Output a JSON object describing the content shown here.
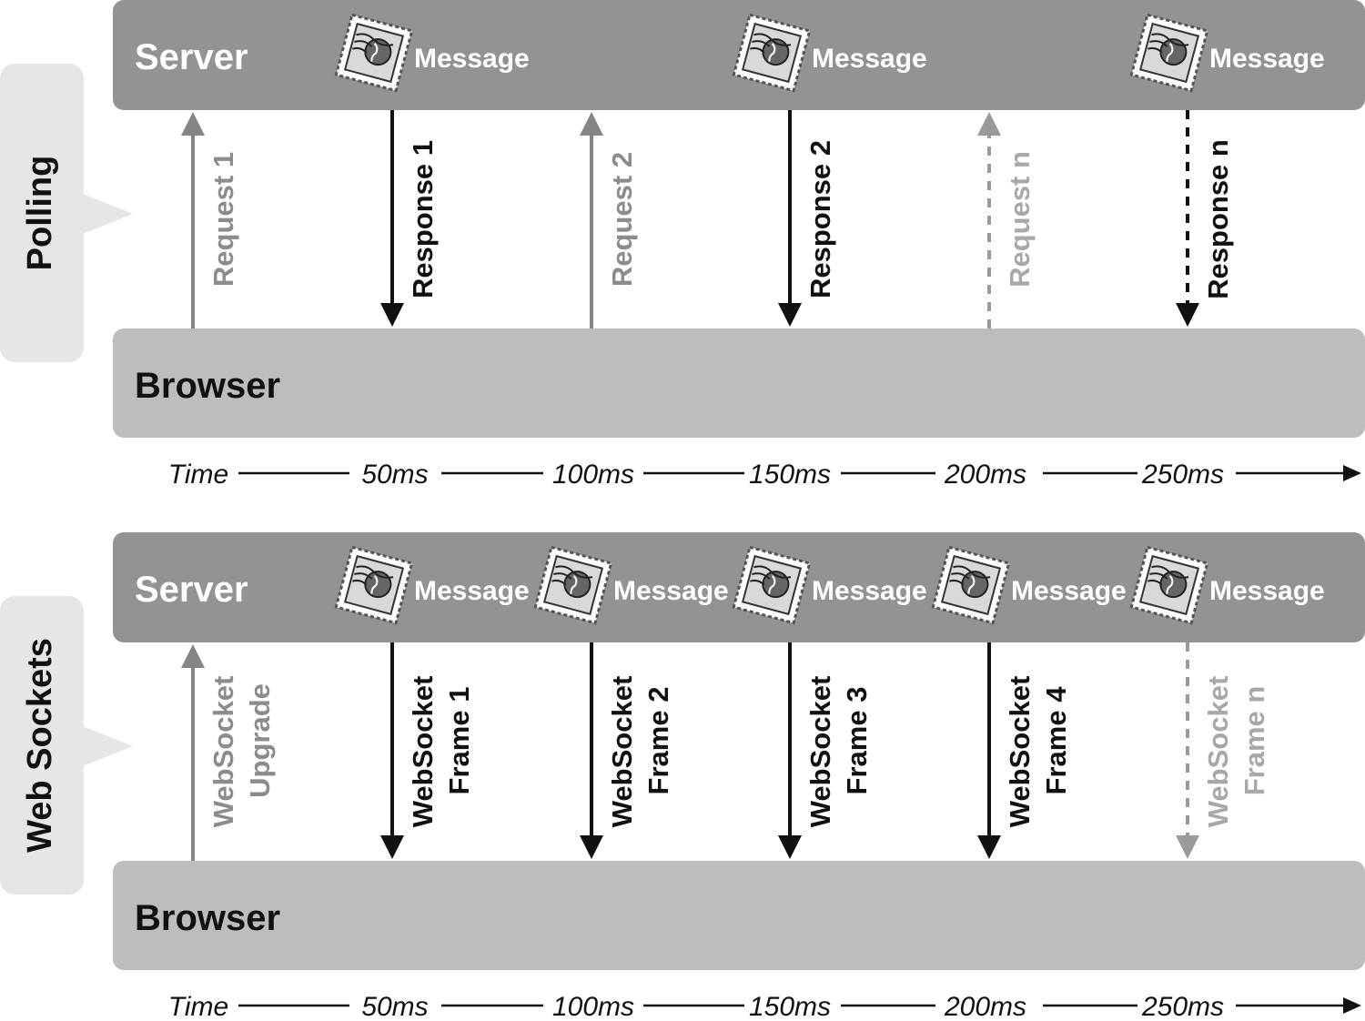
{
  "colors": {
    "server_band": "#939396",
    "browser_band": "#bdbdc0",
    "side_tab": "#e6e6e7",
    "arrow_dark": "#111111",
    "arrow_gray": "#858587",
    "arrow_light": "#9a9a9c",
    "label_gray": "#8c8c8e",
    "label_light": "#a8a8aa"
  },
  "timeline": {
    "labels": [
      "Time",
      "50ms",
      "100ms",
      "150ms",
      "200ms",
      "250ms"
    ]
  },
  "panels": [
    {
      "side_label": "Polling",
      "server_label": "Server",
      "browser_label": "Browser",
      "messages": [
        {
          "icon": "postage-stamp-icon",
          "label": "Message",
          "slot": 1
        },
        {
          "icon": "postage-stamp-icon",
          "label": "Message",
          "slot": 3
        },
        {
          "icon": "postage-stamp-icon",
          "label": "Message",
          "slot": 5
        }
      ],
      "arrows": [
        {
          "slot": 0,
          "direction": "up",
          "style": "solid",
          "tone": "gray",
          "lines": [
            "Request 1"
          ]
        },
        {
          "slot": 1,
          "direction": "down",
          "style": "solid",
          "tone": "dark",
          "lines": [
            "Response 1"
          ]
        },
        {
          "slot": 2,
          "direction": "up",
          "style": "solid",
          "tone": "gray",
          "lines": [
            "Request 2"
          ]
        },
        {
          "slot": 3,
          "direction": "down",
          "style": "solid",
          "tone": "dark",
          "lines": [
            "Response 2"
          ]
        },
        {
          "slot": 4,
          "direction": "up",
          "style": "dashed",
          "tone": "light",
          "lines": [
            "Request n"
          ]
        },
        {
          "slot": 5,
          "direction": "down",
          "style": "dashed",
          "tone": "dark",
          "lines": [
            "Response n"
          ]
        }
      ]
    },
    {
      "side_label": "Web Sockets",
      "server_label": "Server",
      "browser_label": "Browser",
      "messages": [
        {
          "icon": "postage-stamp-icon",
          "label": "Message",
          "slot": 1
        },
        {
          "icon": "postage-stamp-icon",
          "label": "Message",
          "slot": 2
        },
        {
          "icon": "postage-stamp-icon",
          "label": "Message",
          "slot": 3
        },
        {
          "icon": "postage-stamp-icon",
          "label": "Message",
          "slot": 4
        },
        {
          "icon": "postage-stamp-icon",
          "label": "Message",
          "slot": 5
        }
      ],
      "arrows": [
        {
          "slot": 0,
          "direction": "up",
          "style": "solid",
          "tone": "gray",
          "lines": [
            "WebSocket",
            "Upgrade"
          ]
        },
        {
          "slot": 1,
          "direction": "down",
          "style": "solid",
          "tone": "dark",
          "lines": [
            "WebSocket",
            "Frame 1"
          ]
        },
        {
          "slot": 2,
          "direction": "down",
          "style": "solid",
          "tone": "dark",
          "lines": [
            "WebSocket",
            "Frame 2"
          ]
        },
        {
          "slot": 3,
          "direction": "down",
          "style": "solid",
          "tone": "dark",
          "lines": [
            "WebSocket",
            "Frame 3"
          ]
        },
        {
          "slot": 4,
          "direction": "down",
          "style": "solid",
          "tone": "dark",
          "lines": [
            "WebSocket",
            "Frame 4"
          ]
        },
        {
          "slot": 5,
          "direction": "down",
          "style": "dashed",
          "tone": "light",
          "lines": [
            "WebSocket",
            "Frame n"
          ]
        }
      ]
    }
  ]
}
